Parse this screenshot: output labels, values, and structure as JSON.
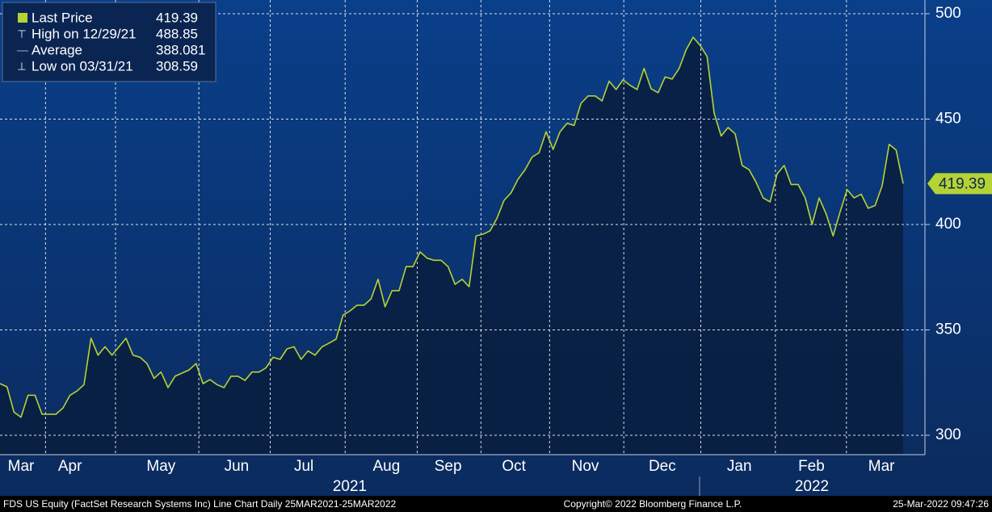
{
  "chart_data": {
    "type": "line",
    "legend": [
      {
        "label": "Last Price",
        "value": "419.39"
      },
      {
        "label": "High on 12/29/21",
        "value": "488.85"
      },
      {
        "label": "Average",
        "value": "388.081"
      },
      {
        "label": "Low on 03/31/21",
        "value": "308.59"
      }
    ],
    "series": [
      {
        "name": "Last Price",
        "color": "#b5d334",
        "values": [
          324.5,
          323,
          311,
          308.59,
          319,
          319,
          310,
          310,
          310,
          313,
          319,
          321,
          324,
          346,
          338,
          342,
          338,
          342,
          346,
          338,
          337,
          334,
          327,
          330,
          322.6,
          328,
          329.5,
          331,
          334,
          324.5,
          326.4,
          324,
          322.6,
          328,
          328,
          326,
          330,
          330,
          332,
          337,
          336,
          341,
          342,
          336,
          340,
          338,
          342,
          343.7,
          345.6,
          357,
          359,
          361.7,
          361.7,
          364.7,
          374,
          361,
          368.6,
          368.6,
          380,
          380,
          387,
          384,
          383,
          383,
          380,
          371.6,
          374,
          370.5,
          394.6,
          395.4,
          397,
          403,
          411.5,
          415,
          421.5,
          426,
          432,
          434,
          444,
          435.6,
          444,
          448,
          447,
          457.5,
          461,
          461,
          458.6,
          468,
          464,
          468.6,
          466,
          464,
          474,
          464.4,
          462.5,
          470,
          469,
          474,
          482.8,
          488.85,
          485,
          479.7,
          452.9,
          442,
          446,
          443,
          428,
          426,
          420,
          412.6,
          410.7,
          424,
          428,
          419,
          419,
          412.6,
          400,
          412.6,
          405,
          394.6,
          406,
          416.5,
          412.6,
          414.4,
          407.7,
          409,
          418.4,
          438,
          435.3,
          419.39
        ]
      }
    ],
    "xticks": [
      {
        "value": 3,
        "label": "Mar"
      },
      {
        "value": 10,
        "label": "Apr"
      },
      {
        "value": 23,
        "label": "May"
      },
      {
        "value": 33.8,
        "label": "Jun"
      },
      {
        "value": 43.4,
        "label": "Jul"
      },
      {
        "value": 55.2,
        "label": "Aug"
      },
      {
        "value": 64,
        "label": "Sep"
      },
      {
        "value": 73.4,
        "label": "Oct"
      },
      {
        "value": 83.6,
        "label": "Nov"
      },
      {
        "value": 94.6,
        "label": "Dec"
      },
      {
        "value": 105.6,
        "label": "Jan"
      },
      {
        "value": 115.9,
        "label": "Feb"
      },
      {
        "value": 125.9,
        "label": "Mar"
      }
    ],
    "year_labels": [
      "2021",
      "2022"
    ],
    "ylim": [
      290.8,
      506.5
    ],
    "yticks": [
      300,
      350,
      400,
      450,
      500
    ],
    "grid": true,
    "footer": {
      "left": "FDS US Equity (FactSet Research Systems Inc) Line Chart  Daily 25MAR2021-25MAR2022",
      "center": "Copyright© 2022 Bloomberg Finance L.P.",
      "right": "25-Mar-2022 09:47:26"
    }
  }
}
